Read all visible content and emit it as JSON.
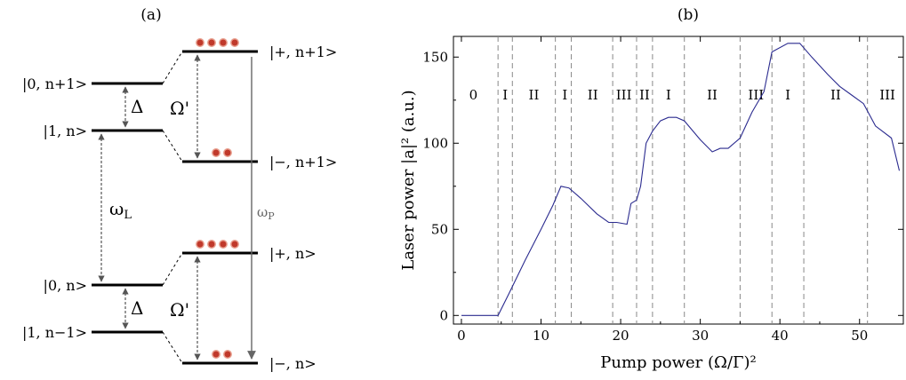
{
  "figure": {
    "panel_a_label": "(a)",
    "panel_b_label": "(b)"
  },
  "diagram": {
    "left_levels": {
      "top_upper": "|0, n+1>",
      "top_lower": "|1, n>",
      "bottom_upper": "|0, n>",
      "bottom_lower": "|1, n−1>"
    },
    "right_levels": {
      "plus_n1": "|+, n+1>",
      "minus_n1": "|−, n+1>",
      "plus_n": "|+, n>",
      "minus_n": "|−, n>"
    },
    "symbols": {
      "delta_top": "Δ",
      "delta_bottom": "Δ",
      "omega_prime_top": "Ω'",
      "omega_prime_bottom": "Ω'",
      "omega_L": "ωL",
      "omega_P": "ωP"
    },
    "populations": {
      "plus_n1": 4,
      "minus_n1": 2,
      "plus_n": 4,
      "minus_n": 2
    },
    "colors": {
      "level": "#000000",
      "arrow": "#555555",
      "dot": "#c0392b"
    }
  },
  "chart_data": {
    "type": "line",
    "title": "",
    "xlabel": "Pump power (Ω/Γ)²",
    "ylabel": "Laser power |a|² (a.u.)",
    "xlim": [
      -1,
      55.5
    ],
    "ylim": [
      -5,
      162
    ],
    "xticks": [
      0,
      10,
      20,
      30,
      40,
      50
    ],
    "yticks": [
      0,
      50,
      100,
      150
    ],
    "grid": false,
    "line_color": "#2b2b8f",
    "series": [
      {
        "x": [
          0,
          4.6,
          6,
          8,
          10,
          11.5,
          12.5,
          13.5,
          15,
          17,
          18.5,
          19.5,
          20.8,
          21.3,
          22,
          22.5,
          23.2,
          24,
          25,
          26,
          27,
          28,
          30,
          31.5,
          32.5,
          33.5,
          35,
          36.5,
          38,
          39,
          41,
          42.5,
          44,
          46,
          47.5,
          49,
          50.5,
          52,
          54,
          55
        ],
        "y": [
          0,
          0,
          13,
          32,
          50,
          64,
          75,
          74,
          68,
          59,
          54,
          54,
          53,
          65,
          67,
          75,
          100,
          107,
          113,
          115,
          115,
          113,
          102,
          95,
          97,
          97,
          103,
          118,
          130,
          153,
          158,
          158,
          150,
          140,
          133,
          128,
          123,
          110,
          103,
          84
        ]
      }
    ],
    "vlines": [
      4.6,
      6.4,
      11.8,
      13.8,
      19,
      22,
      24,
      28,
      35,
      39,
      43,
      51
    ],
    "regions": [
      "0",
      "I",
      "II",
      "I",
      "II",
      "III",
      "II",
      "I",
      "II",
      "III",
      "I",
      "II",
      "III"
    ],
    "region_x": [
      1.5,
      5.5,
      9.1,
      13.0,
      16.5,
      20.4,
      23.0,
      26.0,
      31.5,
      37.0,
      41.0,
      47.0,
      53.5
    ],
    "region_label_y": 128
  }
}
